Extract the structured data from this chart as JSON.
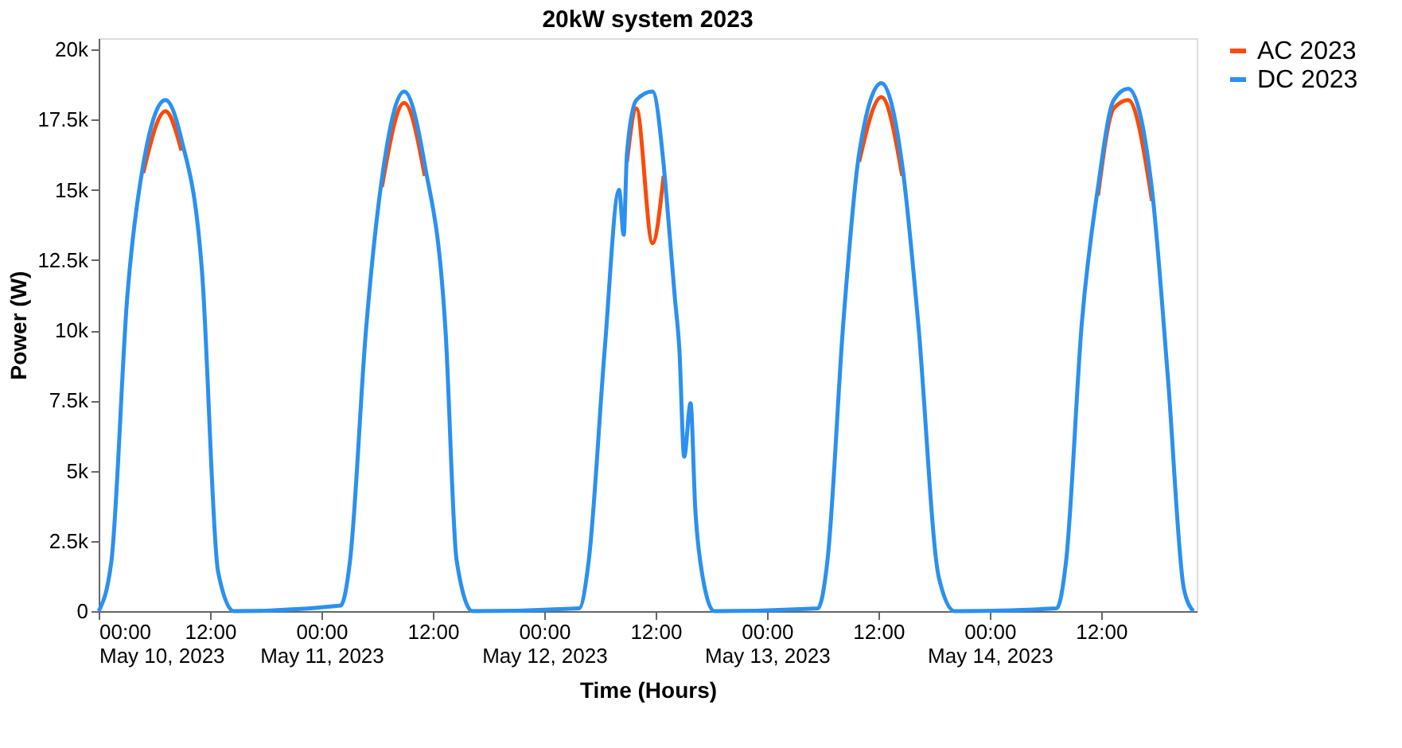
{
  "chart_data": {
    "type": "line",
    "title": "20kW system 2023",
    "xlabel": "Time (Hours)",
    "ylabel": "Power (W)",
    "x": [
      "2023-05-10T00:00",
      "2023-05-10T01:22",
      "2023-05-10T03:05",
      "2023-05-10T04:48",
      "2023-05-10T07:12",
      "2023-05-10T08:55",
      "2023-05-10T11:08",
      "2023-05-10T12:52",
      "2023-05-10T14:34",
      "2023-05-11T02:04",
      "2023-05-11T03:05",
      "2023-05-11T04:48",
      "2023-05-11T06:31",
      "2023-05-11T08:55",
      "2023-05-11T11:08",
      "2023-05-11T13:22",
      "2023-05-11T14:34",
      "2023-05-11T16:17",
      "2023-05-12T03:46",
      "2023-05-12T04:48",
      "2023-05-12T06:31",
      "2023-05-12T08:04",
      "2023-05-12T08:34",
      "2023-05-12T08:55",
      "2023-05-12T09:56",
      "2023-05-12T11:40",
      "2023-05-12T12:52",
      "2023-05-12T13:22",
      "2023-05-12T14:04",
      "2023-05-12T14:34",
      "2023-05-12T15:05",
      "2023-05-12T15:46",
      "2023-05-12T16:17",
      "2023-05-12T16:48",
      "2023-05-12T18:20",
      "2023-05-13T05:29",
      "2023-05-13T06:31",
      "2023-05-13T08:14",
      "2023-05-13T09:56",
      "2023-05-13T12:20",
      "2023-05-13T14:34",
      "2023-05-13T16:17",
      "2023-05-13T18:31",
      "2023-05-13T20:14",
      "2023-05-14T07:12",
      "2023-05-14T08:14",
      "2023-05-14T09:56",
      "2023-05-14T11:40",
      "2023-05-14T13:22",
      "2023-05-14T14:55",
      "2023-05-14T17:29",
      "2023-05-14T19:12",
      "2023-05-14T20:55",
      "2023-05-14T21:56"
    ],
    "series": [
      {
        "name": "AC 2023",
        "color": "#fa4b0a",
        "values": [
          null,
          null,
          null,
          15600,
          17800,
          16400,
          null,
          null,
          null,
          null,
          null,
          null,
          15100,
          18100,
          15500,
          null,
          null,
          null,
          null,
          null,
          null,
          null,
          null,
          16000,
          17900,
          13100,
          15500,
          null,
          null,
          null,
          null,
          null,
          null,
          null,
          null,
          null,
          null,
          null,
          16000,
          18300,
          15500,
          null,
          null,
          null,
          null,
          null,
          null,
          14800,
          17900,
          18200,
          14600,
          null,
          null,
          null
        ]
      },
      {
        "name": "DC 2023",
        "color": "#2b90f0",
        "values": [
          0,
          1760,
          11200,
          15900,
          18200,
          16800,
          12100,
          1400,
          0,
          200,
          1800,
          10000,
          15400,
          18500,
          15900,
          10000,
          1800,
          0,
          100,
          1800,
          9300,
          15000,
          13400,
          16300,
          18200,
          18500,
          15900,
          14000,
          11200,
          9300,
          5500,
          7400,
          3600,
          1800,
          0,
          100,
          1800,
          10300,
          16300,
          18800,
          15900,
          10300,
          1200,
          0,
          100,
          1800,
          10300,
          15100,
          18200,
          18600,
          15000,
          8300,
          800,
          0
        ]
      }
    ],
    "xlim": [
      "2023-05-10T00:00",
      "2023-05-14T22:18"
    ],
    "xticks": [
      {
        "value": "2023-05-10T00:00",
        "label": "00:00\nMay 10, 2023"
      },
      {
        "value": "2023-05-10T12:00",
        "label": "12:00"
      },
      {
        "value": "2023-05-11T00:00",
        "label": "00:00\nMay 11, 2023"
      },
      {
        "value": "2023-05-11T12:00",
        "label": "12:00"
      },
      {
        "value": "2023-05-12T00:00",
        "label": "00:00\nMay 12, 2023"
      },
      {
        "value": "2023-05-12T12:00",
        "label": "12:00"
      },
      {
        "value": "2023-05-13T00:00",
        "label": "00:00\nMay 13, 2023"
      },
      {
        "value": "2023-05-13T12:00",
        "label": "12:00"
      },
      {
        "value": "2023-05-14T00:00",
        "label": "00:00\nMay 14, 2023"
      },
      {
        "value": "2023-05-14T12:00",
        "label": "12:00"
      }
    ],
    "ylim": [
      0,
      20400
    ],
    "yticks": [
      {
        "value": 0,
        "label": "0"
      },
      {
        "value": 2500,
        "label": "2.5k"
      },
      {
        "value": 5000,
        "label": "5k"
      },
      {
        "value": 7500,
        "label": "7.5k"
      },
      {
        "value": 10000,
        "label": "10k"
      },
      {
        "value": 12500,
        "label": "12.5k"
      },
      {
        "value": 15000,
        "label": "15k"
      },
      {
        "value": 17500,
        "label": "17.5k"
      },
      {
        "value": 20000,
        "label": "20k"
      }
    ],
    "grid": false,
    "legend": "top right",
    "line_style": "solid"
  }
}
